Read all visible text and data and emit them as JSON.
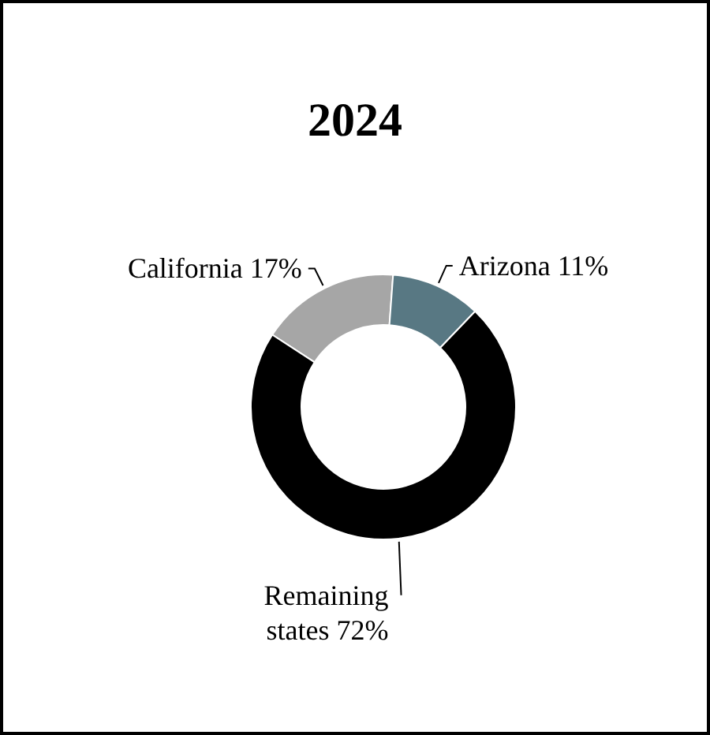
{
  "chart_data": {
    "type": "donut",
    "title": "2024",
    "categories": [
      "California",
      "Arizona",
      "Remaining states"
    ],
    "values": [
      17,
      11,
      72
    ],
    "value_labels": [
      "17%",
      "11%",
      "72%"
    ],
    "colors": [
      "#a6a6a6",
      "#587883",
      "#000000"
    ]
  }
}
